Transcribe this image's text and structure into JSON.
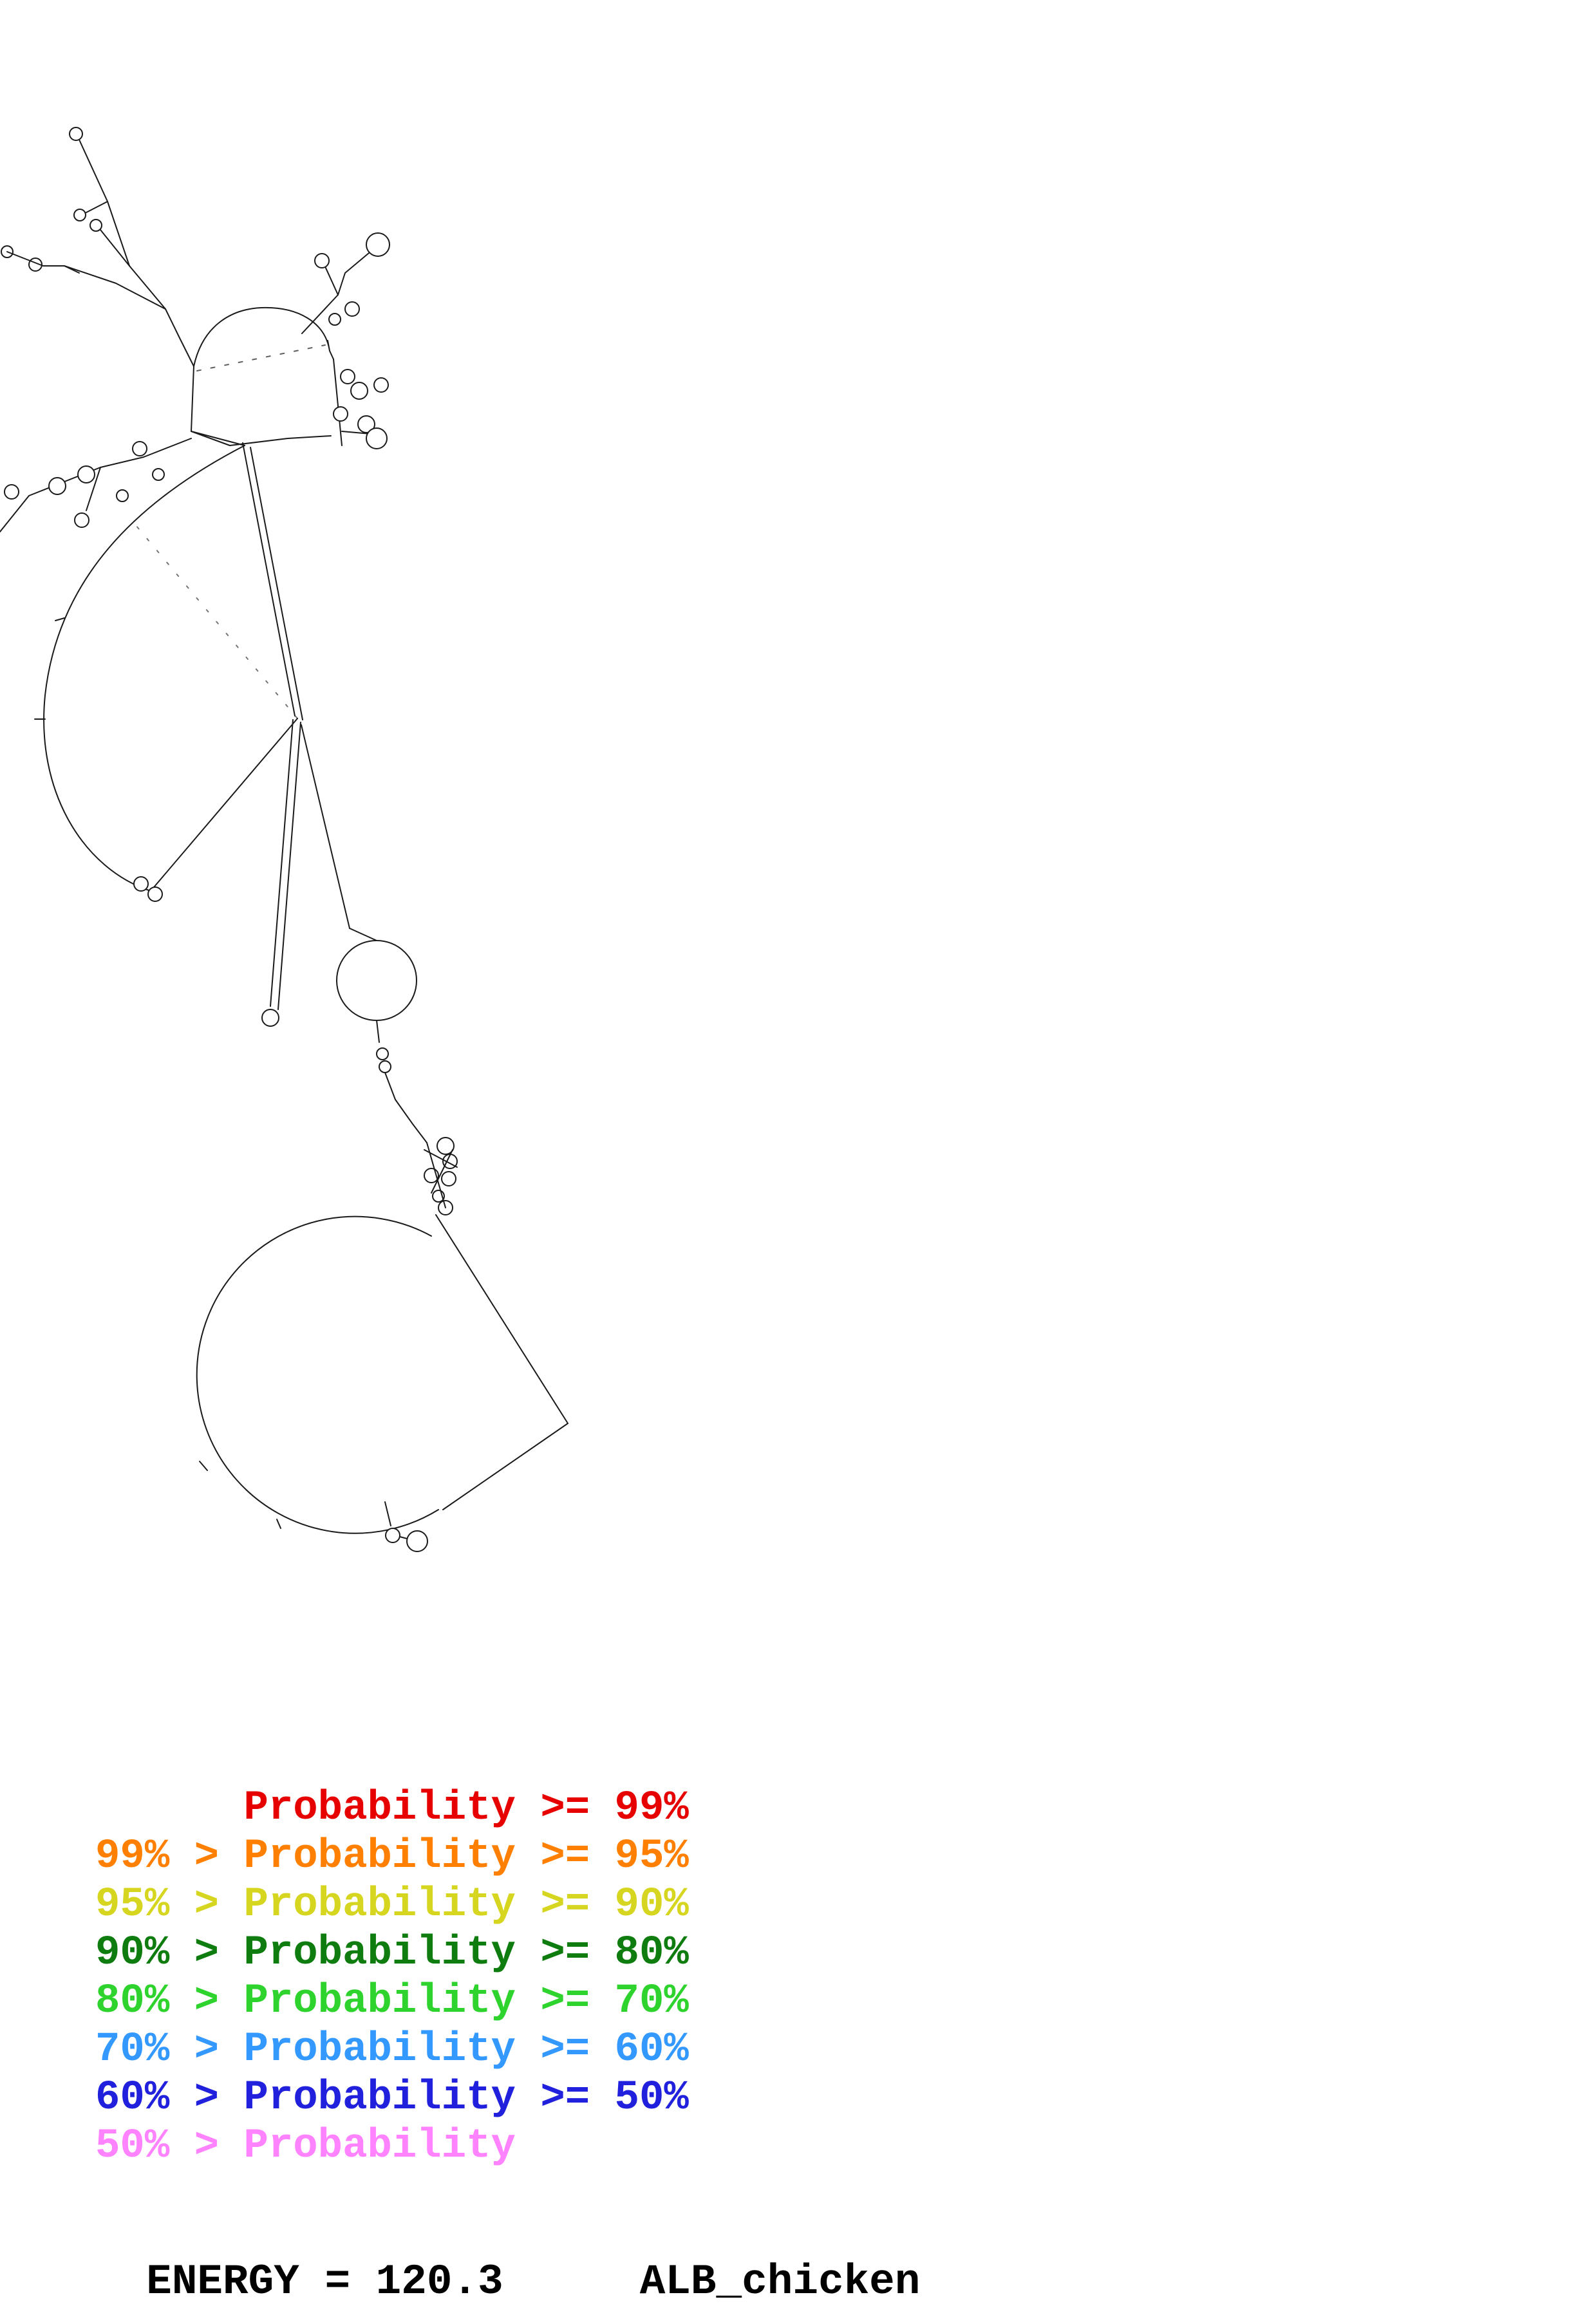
{
  "figure": {
    "description": "RNA secondary structure plot",
    "stroke_color": "#1a1a1a"
  },
  "legend": {
    "rows": [
      {
        "label": "      Probability >= 99%",
        "color": "#e60000"
      },
      {
        "label": "99% > Probability >= 95%",
        "color": "#ff7f00"
      },
      {
        "label": "95% > Probability >= 90%",
        "color": "#d6d621"
      },
      {
        "label": "90% > Probability >= 80%",
        "color": "#0e7c0e"
      },
      {
        "label": "80% > Probability >= 70%",
        "color": "#2ed32e"
      },
      {
        "label": "70% > Probability >= 60%",
        "color": "#3399ff"
      },
      {
        "label": "60% > Probability >= 50%",
        "color": "#2121dd"
      },
      {
        "label": "50% > Probability",
        "color": "#ff82ff"
      }
    ]
  },
  "footer": {
    "energy": "ENERGY = 120.3",
    "name": "ALB_chicken"
  }
}
